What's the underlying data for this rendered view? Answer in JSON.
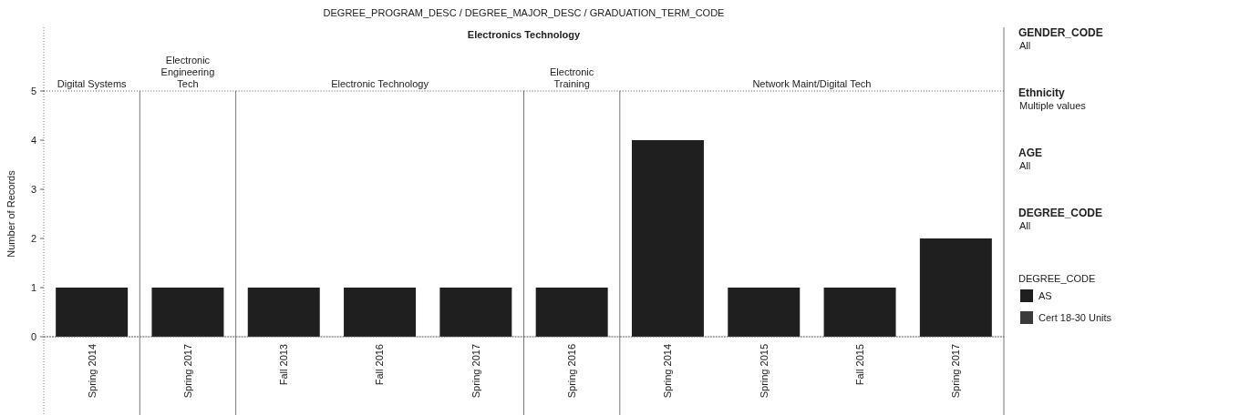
{
  "chart_data": [
    {
      "type": "other",
      "title": "DEGREE_PROGRAM_DESC / DEGREE_MAJOR_DESC / GRADUATION_TERM_CODE",
      "subtitle": "Electronics Technology"
    },
    {
      "type": "bar",
      "title": "Digital Systems",
      "categories": [
        "Spring 2014"
      ],
      "values": [
        1
      ],
      "color": "#1f1f1f",
      "ylim": [
        0,
        5
      ],
      "yticks": [
        0,
        1,
        2,
        3,
        4,
        5
      ],
      "ylabel": "Number of Records"
    },
    {
      "type": "bar",
      "title": "Electronic Engineering Tech",
      "categories": [
        "Spring 2017"
      ],
      "values": [
        1
      ],
      "color": "#1f1f1f",
      "ylim": [
        0,
        5
      ],
      "yticks": [
        0,
        1,
        2,
        3,
        4,
        5
      ],
      "tick_labels": "x"
    },
    {
      "type": "bar",
      "title": "Electronic Technology",
      "categories": [
        "Fall 2013",
        "Fall 2016",
        "Spring 2017"
      ],
      "values": [
        1,
        1,
        1
      ],
      "color": "#1f1f1f",
      "ylim": [
        0,
        5
      ],
      "yticks": [
        0,
        1,
        2,
        3,
        4,
        5
      ],
      "tick_labels": "x"
    },
    {
      "type": "bar",
      "title": "Electronic Training",
      "categories": [
        "Spring 2016"
      ],
      "values": [
        1
      ],
      "color": "#1f1f1f",
      "ylim": [
        0,
        5
      ],
      "yticks": [
        0,
        1,
        2,
        3,
        4,
        5
      ],
      "tick_labels": "x"
    },
    {
      "type": "bar",
      "title": "Network Maint/Digital Tech",
      "categories": [
        "Spring 2014",
        "Spring 2015",
        "Fall 2015",
        "Spring 2017"
      ],
      "ylim": [
        0,
        5
      ],
      "yticks": [
        0,
        1,
        2,
        3,
        4,
        5
      ],
      "tick_labels": "x",
      "legend": "right",
      "legend_title": "DEGREE_CODE",
      "series": [
        {
          "name": "AS",
          "color": "#1f1f1f",
          "values": [
            4,
            1,
            1,
            2
          ]
        },
        {
          "name": "Cert 18-30 Units",
          "color": "#3a3a3a",
          "values": [
            null,
            null,
            null,
            null
          ]
        }
      ]
    },
    {
      "type": "other",
      "annotations": [
        "GENDER_CODE",
        "All",
        "Ethnicity",
        "Multiple values",
        "AGE",
        "All",
        "DEGREE_CODE",
        "All"
      ]
    }
  ]
}
